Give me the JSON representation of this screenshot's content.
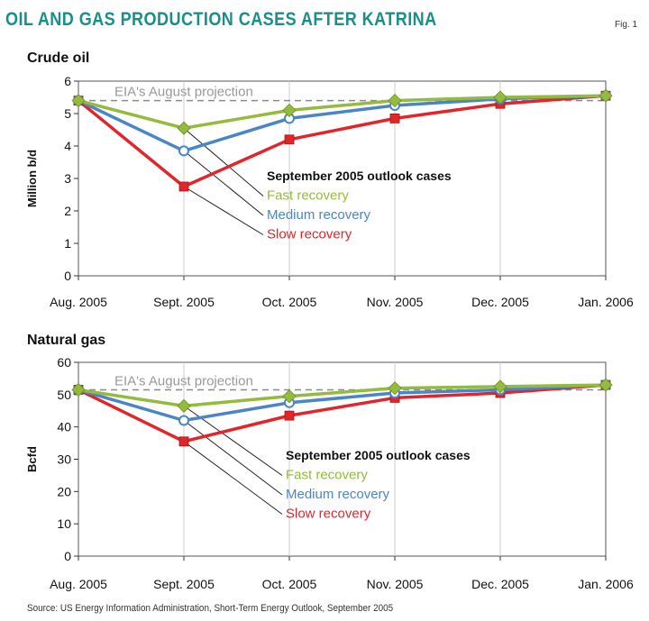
{
  "figure": {
    "title": "Oil and gas production cases after Katrina",
    "fig_label": "Fig. 1",
    "source": "Source: US Energy Information Administration, Short-Term Energy Outlook, September 2005"
  },
  "colors": {
    "fast": "#94bb3c",
    "medium": "#4a86c5",
    "slow": "#e2252b",
    "projection": "#8a8a8a",
    "grid": "#cccccc",
    "panel_bg": "#ffffff"
  },
  "chart_data": [
    {
      "type": "line",
      "title": "Crude oil",
      "xlabel": "",
      "ylabel": "Million b/d",
      "categories": [
        "Aug. 2005",
        "Sept. 2005",
        "Oct. 2005",
        "Nov. 2005",
        "Dec. 2005",
        "Jan. 2006"
      ],
      "ylim": [
        0,
        6
      ],
      "yticks": [
        0,
        1,
        2,
        3,
        4,
        5,
        6
      ],
      "projection": {
        "label": "EIA's August projection",
        "value": 5.4
      },
      "legend_title": "September 2005 outlook cases",
      "series": [
        {
          "name": "Fast recovery",
          "key": "fast",
          "marker": "diamond",
          "values": [
            5.4,
            4.55,
            5.1,
            5.4,
            5.5,
            5.55
          ]
        },
        {
          "name": "Medium recovery",
          "key": "medium",
          "marker": "circle",
          "values": [
            5.4,
            3.85,
            4.85,
            5.25,
            5.45,
            5.55
          ]
        },
        {
          "name": "Slow recovery",
          "key": "slow",
          "marker": "square",
          "values": [
            5.4,
            2.75,
            4.2,
            4.85,
            5.3,
            5.55
          ]
        }
      ]
    },
    {
      "type": "line",
      "title": "Natural gas",
      "xlabel": "",
      "ylabel": "Bcfd",
      "categories": [
        "Aug. 2005",
        "Sept. 2005",
        "Oct. 2005",
        "Nov. 2005",
        "Dec. 2005",
        "Jan. 2006"
      ],
      "ylim": [
        0,
        60
      ],
      "yticks": [
        0,
        10,
        20,
        30,
        40,
        50,
        60
      ],
      "projection": {
        "label": "EIA's August projection",
        "value": 51.5
      },
      "legend_title": "September 2005 outlook cases",
      "series": [
        {
          "name": "Fast recovery",
          "key": "fast",
          "marker": "diamond",
          "values": [
            51.5,
            46.5,
            49.5,
            52,
            52.5,
            53
          ]
        },
        {
          "name": "Medium recovery",
          "key": "medium",
          "marker": "circle",
          "values": [
            51.5,
            42,
            47.5,
            50.5,
            51.5,
            53
          ]
        },
        {
          "name": "Slow recovery",
          "key": "slow",
          "marker": "square",
          "values": [
            51.5,
            35.5,
            43.5,
            49,
            50.5,
            53
          ]
        }
      ]
    }
  ]
}
